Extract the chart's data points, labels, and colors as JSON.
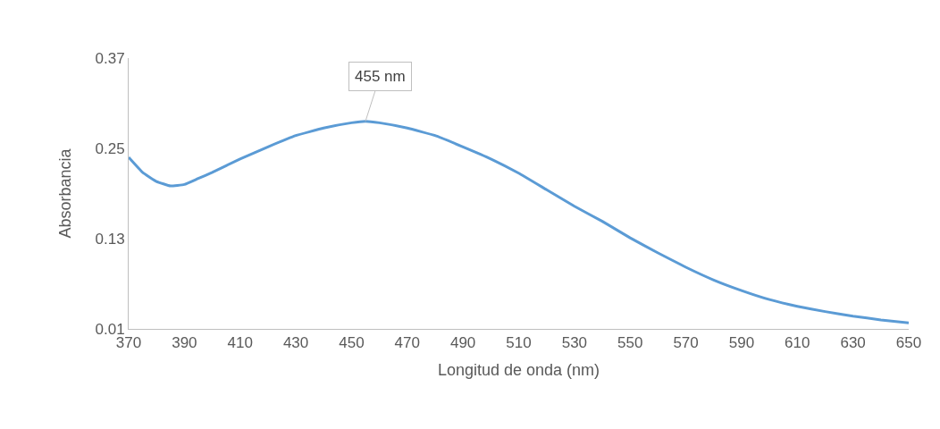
{
  "chart_data": {
    "type": "line",
    "xlabel": "Longitud de onda (nm)",
    "ylabel": "Absorbancia",
    "x": [
      370,
      375,
      380,
      385,
      390,
      395,
      400,
      410,
      420,
      430,
      440,
      450,
      455,
      460,
      470,
      480,
      490,
      500,
      510,
      520,
      530,
      540,
      550,
      560,
      570,
      580,
      590,
      600,
      610,
      620,
      630,
      640,
      650
    ],
    "series": [
      {
        "color": "#5b9bd5",
        "values": [
          0.238,
          0.218,
          0.206,
          0.2,
          0.202,
          0.21,
          0.218,
          0.236,
          0.252,
          0.267,
          0.277,
          0.284,
          0.286,
          0.284,
          0.277,
          0.267,
          0.252,
          0.236,
          0.217,
          0.195,
          0.173,
          0.153,
          0.131,
          0.111,
          0.092,
          0.075,
          0.061,
          0.049,
          0.04,
          0.033,
          0.027,
          0.022,
          0.018
        ]
      }
    ],
    "xlim": [
      370,
      650
    ],
    "xticks": [
      370,
      390,
      410,
      430,
      450,
      470,
      490,
      510,
      530,
      550,
      570,
      590,
      610,
      630,
      650
    ],
    "ylim": [
      0.01,
      0.37
    ],
    "yticks": [
      0.01,
      0.13,
      0.25,
      0.37
    ],
    "annotations": [
      {
        "text": "455 nm",
        "x": 455,
        "y": 0.286
      }
    ],
    "marker": "none",
    "line_style": "solid"
  }
}
